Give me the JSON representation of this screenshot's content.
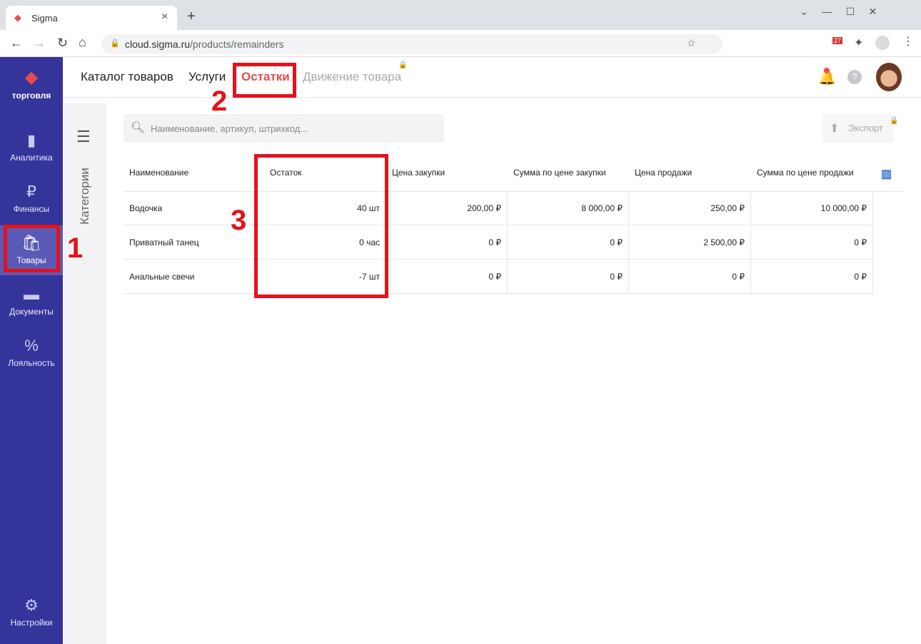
{
  "browser": {
    "tab_title": "Sigma",
    "url_host": "cloud.sigma.ru",
    "url_path": "/products/remainders",
    "ext_badge": "27"
  },
  "sidebar": {
    "brand": "торговля",
    "items": [
      {
        "label": "Аналитика",
        "icon": "bar-chart-icon"
      },
      {
        "label": "Финансы",
        "icon": "ruble-icon"
      },
      {
        "label": "Товары",
        "icon": "shopping-bag-icon"
      },
      {
        "label": "Документы",
        "icon": "folder-icon"
      },
      {
        "label": "Лояльность",
        "icon": "percent-badge-icon"
      },
      {
        "label": "Настройки",
        "icon": "gear-icon"
      }
    ],
    "active": "Товары"
  },
  "nav": {
    "tabs": [
      "Каталог товаров",
      "Услуги",
      "Остатки",
      "Движение товара"
    ],
    "active": "Остатки"
  },
  "categories_label": "Категории",
  "search": {
    "placeholder": "Наименование, артикул, штрихкод..."
  },
  "export_label": "Экспорт",
  "table": {
    "headers": [
      "Наименование",
      "Остаток",
      "Цена закупки",
      "Сумма по цене закупки",
      "Цена продажи",
      "Сумма по цене продажи"
    ],
    "rows": [
      [
        "Водочка",
        "40 шт",
        "200,00 ₽",
        "8 000,00 ₽",
        "250,00 ₽",
        "10 000,00 ₽"
      ],
      [
        "Приватный танец",
        "0 час",
        "0 ₽",
        "0 ₽",
        "2 500,00 ₽",
        "0 ₽"
      ],
      [
        "Анальные свечи",
        "-7 шт",
        "0 ₽",
        "0 ₽",
        "0 ₽",
        "0 ₽"
      ]
    ]
  },
  "annotations": [
    "1",
    "2",
    "3"
  ],
  "colors": {
    "sidebar": "#35349a",
    "accent": "#e84b4b",
    "annotation": "#e3121b"
  }
}
